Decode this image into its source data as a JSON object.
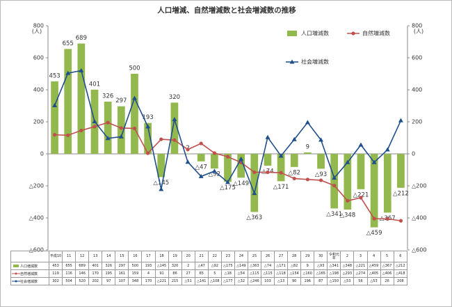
{
  "chart_data": {
    "type": "bar_line",
    "title": "人口増減、自然増減数と社会増減数の推移",
    "y_unit": "(人)",
    "y2_unit": "(人)",
    "categories": [
      "平成10",
      "11",
      "12",
      "13",
      "14",
      "15",
      "16",
      "17",
      "18",
      "19",
      "20",
      "21",
      "22",
      "23",
      "24",
      "25",
      "26",
      "27",
      "28",
      "29",
      "30",
      "令和元年",
      "2",
      "3",
      "4",
      "5",
      "6"
    ],
    "series": [
      {
        "name": "人口増減数",
        "type": "bar",
        "color": "#93b84e",
        "values": [
          453,
          655,
          689,
          401,
          326,
          297,
          500,
          193,
          -145,
          320,
          2,
          -47,
          -92,
          -175,
          -149,
          -363,
          -74,
          -171,
          -82,
          9,
          -93,
          -341,
          -348,
          -221,
          -459,
          -367,
          -212
        ],
        "value_labels": [
          "453",
          "655",
          "689",
          "401",
          "326",
          "297",
          "500",
          "193",
          "△145",
          "320",
          "2",
          "△47",
          "△92",
          "△175",
          "△149",
          "△363",
          "△74",
          "△171",
          "△82",
          "9",
          "△93",
          "△341",
          "△348",
          "△221",
          "△459",
          "△367",
          "△212"
        ]
      },
      {
        "name": "自然増減数",
        "type": "line",
        "marker": "circle",
        "axis": "y2",
        "color": "#c0504d",
        "values": [
          119,
          116,
          146,
          170,
          195,
          161,
          159,
          4,
          91,
          86,
          27,
          65,
          5,
          -18,
          -54,
          -115,
          -115,
          -118,
          -154,
          -160,
          -165,
          -198,
          -293,
          -274,
          -405,
          -406,
          -418
        ],
        "value_labels": [
          "119",
          "116",
          "146",
          "170",
          "195",
          "161",
          "159",
          "4",
          "91",
          "86",
          "27",
          "65",
          "5",
          "△18",
          "△54",
          "△115",
          "△115",
          "△118",
          "△154",
          "△160",
          "△165",
          "△198",
          "△293",
          "△274",
          "△405",
          "△406",
          "△418"
        ]
      },
      {
        "name": "社会増減数",
        "type": "line",
        "marker": "triangle",
        "axis": "y2",
        "color": "#1f4e8c",
        "values": [
          302,
          504,
          520,
          202,
          97,
          107,
          348,
          170,
          -221,
          215,
          -51,
          -141,
          -108,
          -177,
          -32,
          -246,
          103,
          -13,
          90,
          196,
          87,
          -150,
          -53,
          56,
          -53,
          26,
          208
        ],
        "value_labels": [
          "302",
          "504",
          "520",
          "202",
          "97",
          "107",
          "348",
          "170",
          "△221",
          "215",
          "△51",
          "△141",
          "△108",
          "△177",
          "△32",
          "△246",
          "103",
          "△13",
          "90",
          "196",
          "87",
          "△150",
          "△53",
          "56",
          "△53",
          "26",
          "208"
        ]
      }
    ],
    "ylim": [
      -600,
      800
    ],
    "yticks": [
      {
        "value": -600,
        "label": "△600"
      },
      {
        "value": -400,
        "label": "△400"
      },
      {
        "value": -200,
        "label": "△200"
      },
      0,
      200,
      400,
      600,
      800
    ],
    "y2lim": [
      -600,
      800
    ],
    "y2ticks": [
      {
        "value": -600,
        "label": "△600"
      },
      {
        "value": -400,
        "label": "△400"
      },
      {
        "value": -200,
        "label": "△200"
      },
      0,
      200,
      400,
      600,
      800
    ],
    "grid": false,
    "legend": "top-right"
  }
}
